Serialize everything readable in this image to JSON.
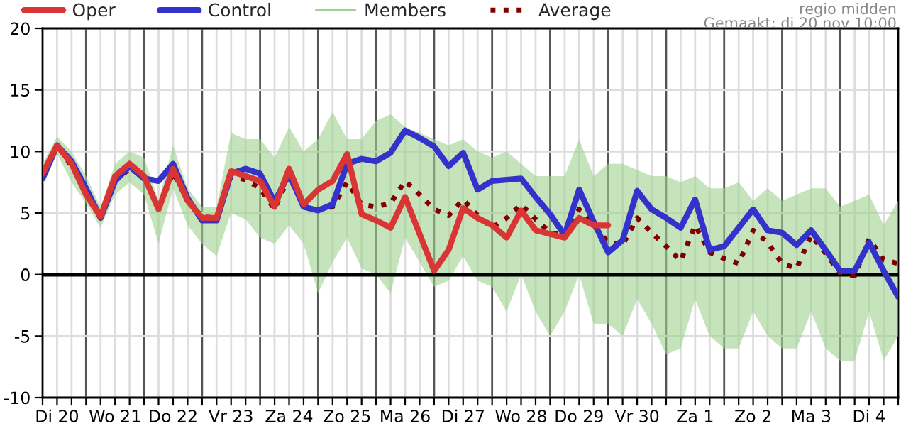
{
  "chart_data": {
    "type": "line",
    "annotations": [
      "regio midden",
      "Gemaakt: di 20 nov 10:00"
    ],
    "categories": [
      null,
      "Di 20",
      null,
      null,
      null,
      "Wo 21",
      null,
      null,
      null,
      "Do 22",
      null,
      null,
      null,
      "Vr 23",
      null,
      null,
      null,
      "Za 24",
      null,
      null,
      null,
      "Zo 25",
      null,
      null,
      null,
      "Ma 26",
      null,
      null,
      null,
      "Di 27",
      null,
      null,
      null,
      "Wo 28",
      null,
      null,
      null,
      "Do 29",
      null,
      null,
      null,
      "Vr 30",
      null,
      null,
      null,
      "Za 1",
      null,
      null,
      null,
      "Zo 2",
      null,
      null,
      null,
      "Ma 3",
      null,
      null,
      null,
      "Di 4",
      null,
      null
    ],
    "series": [
      {
        "name": "Oper",
        "color": "#d93535",
        "line_style": "solid",
        "values": [
          8.2,
          10.5,
          9,
          6.5,
          4.7,
          8,
          9,
          8,
          5.3,
          8.6,
          6,
          4.6,
          4.6,
          8.4,
          8,
          7.6,
          5.5,
          8.6,
          5.7,
          6.9,
          7.6,
          9.8,
          4.9,
          4.4,
          3.8,
          6.3,
          3.3,
          0.3,
          2,
          5.4,
          4.6,
          4,
          3,
          5.2,
          3.6,
          3.3,
          3,
          4.6,
          4,
          4,
          null,
          null,
          null,
          null,
          null,
          null,
          null,
          null,
          null,
          null,
          null,
          null,
          null,
          null,
          null,
          null,
          null,
          null,
          null,
          null
        ]
      },
      {
        "name": "Control",
        "color": "#3333cc",
        "line_style": "solid",
        "values": [
          7.8,
          10.5,
          9.2,
          7.0,
          4.6,
          7.6,
          8.8,
          7.8,
          7.6,
          9,
          6.2,
          4.4,
          4.4,
          8.2,
          8.6,
          8.2,
          5.9,
          8.2,
          5.5,
          5.2,
          5.7,
          9,
          9.4,
          9.2,
          9.9,
          11.7,
          11.1,
          10.4,
          8.8,
          9.9,
          6.9,
          7.6,
          7.7,
          7.8,
          6.3,
          4.9,
          3.2,
          6.9,
          4.3,
          1.8,
          2.8,
          6.8,
          5.3,
          4.6,
          3.8,
          6.1,
          2,
          2.3,
          3.8,
          5.3,
          3.6,
          3.4,
          2.4,
          3.6,
          2,
          0.3,
          0.3,
          2.6,
          0.3,
          -1.8
        ]
      },
      {
        "name": "Members",
        "type": "area",
        "color": "#9fd28f",
        "values": [
          null,
          null,
          null,
          null,
          null,
          null,
          null,
          null,
          null,
          null,
          null,
          null,
          null,
          null,
          null,
          null,
          null,
          null,
          null,
          null,
          null,
          null,
          null,
          null,
          null,
          null,
          null,
          null,
          null,
          null,
          null,
          null,
          null,
          null,
          null,
          null,
          null,
          null,
          null,
          null,
          null,
          null,
          null,
          null,
          null,
          null,
          null,
          null,
          null,
          null,
          null,
          null,
          null,
          null,
          null,
          null,
          null,
          null,
          null,
          null
        ],
        "lower": [
          7.2,
          9.8,
          7.5,
          5.8,
          3.8,
          6.5,
          7.5,
          6.5,
          2.5,
          7,
          4,
          2.5,
          1.5,
          5,
          4.5,
          3,
          2.5,
          4,
          2.5,
          -1.5,
          1,
          3,
          0.5,
          0,
          -1.5,
          3,
          1,
          -1,
          -0.5,
          1.5,
          -0.5,
          -1,
          -3,
          0,
          -3,
          -5,
          -3,
          0,
          -4,
          -4,
          -5,
          -2,
          -4,
          -6.5,
          -6,
          -2,
          -5,
          -6,
          -6,
          -3,
          -5,
          -6,
          -6,
          -3,
          -6,
          -7,
          -7,
          -3,
          -7,
          -5
        ],
        "upper": [
          9,
          11.2,
          10,
          8,
          5.5,
          9,
          10,
          9.5,
          6,
          10.5,
          7,
          5.5,
          5.5,
          11.5,
          11,
          11,
          9.5,
          12,
          10,
          11,
          13.2,
          11,
          11,
          12.5,
          13,
          12,
          11.5,
          11,
          10.5,
          11,
          10,
          9.5,
          10,
          9,
          8,
          8,
          8,
          11,
          8,
          9,
          9,
          8.5,
          8,
          8,
          7.5,
          8,
          7,
          7,
          7.5,
          6,
          7,
          6,
          6.5,
          7,
          7,
          5.5,
          6,
          6.5,
          4,
          6
        ]
      },
      {
        "name": "Average",
        "color": "#800000",
        "line_style": "dotted",
        "values": [
          8,
          10.5,
          8.8,
          6.8,
          4.6,
          7.6,
          8.6,
          8,
          5.3,
          8.3,
          6,
          4.7,
          4.6,
          8,
          7.7,
          7,
          5.3,
          8,
          5.5,
          5.3,
          5.5,
          7.5,
          5.7,
          5.5,
          5.8,
          7.6,
          6.5,
          5.3,
          4.8,
          6.1,
          4.8,
          3.8,
          4.6,
          5.7,
          4.5,
          3.4,
          3.2,
          5.3,
          4,
          2.6,
          2.4,
          4.6,
          3.4,
          2.3,
          1.1,
          4,
          1.8,
          1.3,
          0.9,
          3.6,
          2.6,
          0.9,
          0.5,
          3.2,
          1.7,
          0.1,
          -0.1,
          2.9,
          1.2,
          0.9
        ]
      }
    ],
    "ylim": [
      -10,
      20
    ],
    "yticks": [
      -10,
      -5,
      0,
      5,
      10,
      15,
      20
    ],
    "grid": true,
    "legend": "top left",
    "ref_lines": [
      {
        "axis": "y",
        "value": 0,
        "label": null,
        "color": "#000000"
      }
    ]
  }
}
